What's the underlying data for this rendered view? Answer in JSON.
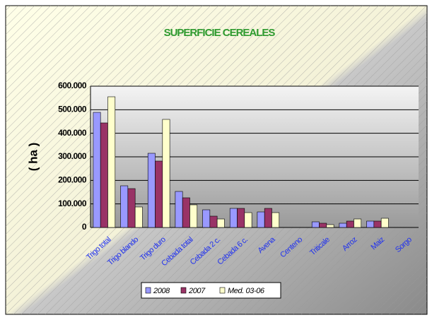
{
  "chart_data": {
    "type": "bar",
    "title": "SUPERFICIE CEREALES",
    "y_label": "( ha )",
    "categories": [
      "Trigo total",
      "Trigo blando",
      "Trigo duro",
      "Cebada total",
      "Cebada 2 c.",
      "Cebada 6 c.",
      "Avena",
      "Centeno",
      "Triticale",
      "Arroz",
      "Maiz",
      "Sorgo"
    ],
    "series": [
      {
        "name": "2008",
        "color": "#9999ff",
        "values": [
          489000,
          177000,
          315000,
          153000,
          75000,
          81000,
          66000,
          null,
          24000,
          18000,
          27000,
          null
        ]
      },
      {
        "name": "2007",
        "color": "#993366",
        "values": [
          444000,
          165000,
          282000,
          126000,
          48000,
          81000,
          81000,
          null,
          18000,
          27000,
          27000,
          null
        ]
      },
      {
        "name": "Med. 03-06",
        "color": "#ffffcc",
        "values": [
          555000,
          87000,
          459000,
          96000,
          36000,
          63000,
          63000,
          null,
          12000,
          36000,
          39000,
          null
        ]
      }
    ],
    "ylim": [
      0,
      600000
    ],
    "yticks": [
      0,
      {
        "value": 100000,
        "label": "100.000"
      },
      {
        "value": 200000,
        "label": "200.000"
      },
      {
        "value": 300000,
        "label": "300.000"
      },
      {
        "value": 400000,
        "label": "400.000"
      },
      {
        "value": 500000,
        "label": "500.000"
      },
      {
        "value": 600000,
        "label": "600.000"
      }
    ],
    "grid": true,
    "legend": "bottom"
  }
}
